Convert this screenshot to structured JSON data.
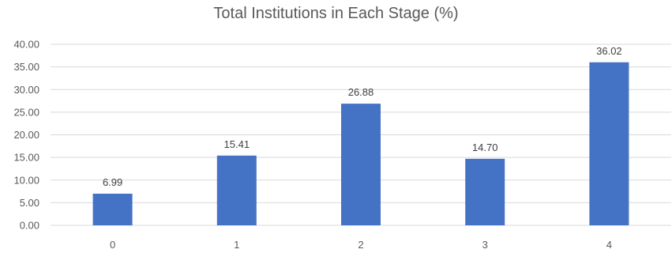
{
  "chart_data": {
    "type": "bar",
    "title": "Total Institutions in Each Stage (%)",
    "xlabel": "",
    "ylabel": "",
    "categories": [
      "0",
      "1",
      "2",
      "3",
      "4"
    ],
    "values": [
      6.99,
      15.41,
      26.88,
      14.7,
      36.02
    ],
    "value_labels": [
      "6.99",
      "15.41",
      "26.88",
      "14.70",
      "36.02"
    ],
    "ylim": [
      0,
      40
    ],
    "yticks": [
      "0.00",
      "5.00",
      "10.00",
      "15.00",
      "20.00",
      "25.00",
      "30.00",
      "35.00",
      "40.00"
    ],
    "grid": "horizontal",
    "legend": "none",
    "bar_color": "#4472c4",
    "grid_color": "#d9d9d9",
    "text_color": "#595959"
  }
}
